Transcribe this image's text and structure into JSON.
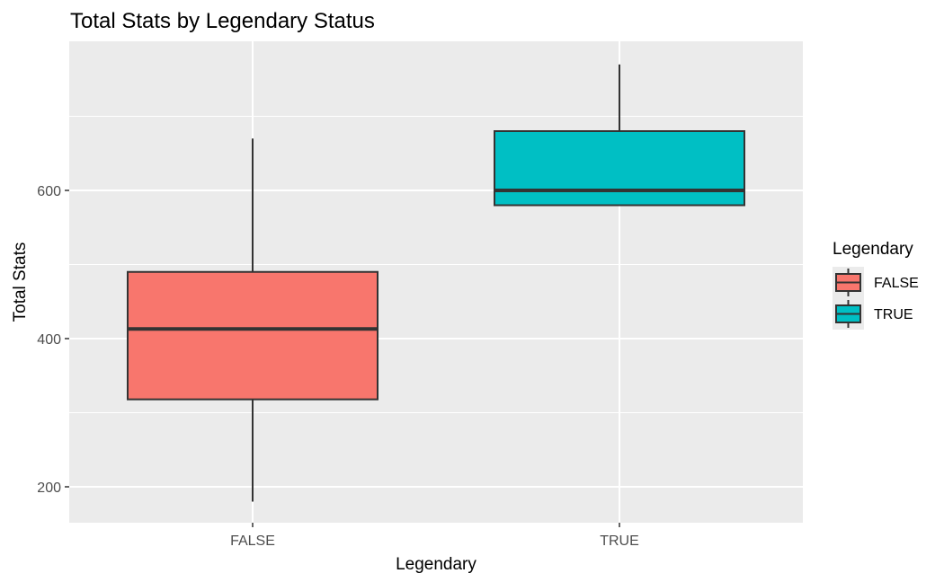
{
  "chart_data": {
    "type": "boxplot",
    "title": "Total Stats by Legendary Status",
    "xlabel": "Legendary",
    "ylabel": "Total Stats",
    "ylim": [
      150,
      790
    ],
    "yticks": [
      200,
      400,
      600
    ],
    "grid": true,
    "legend_placement": "right",
    "legend_title": "Legendary",
    "categories": [
      "FALSE",
      "TRUE"
    ],
    "boxes": [
      {
        "category": "FALSE",
        "min": 180,
        "q1": 318,
        "median": 413,
        "q3": 490,
        "max": 670,
        "color": "#F8766D"
      },
      {
        "category": "TRUE",
        "min": 580,
        "q1": 580,
        "median": 600,
        "q3": 680,
        "max": 770,
        "color": "#00BFC4"
      }
    ],
    "legend": [
      {
        "label": "FALSE",
        "color": "#F8766D"
      },
      {
        "label": "TRUE",
        "color": "#00BFC4"
      }
    ],
    "colors": {
      "panel": "#EBEBEB",
      "grid_major": "#FFFFFF",
      "box_outline": "#333333",
      "tick_text": "#4D4D4D"
    }
  }
}
